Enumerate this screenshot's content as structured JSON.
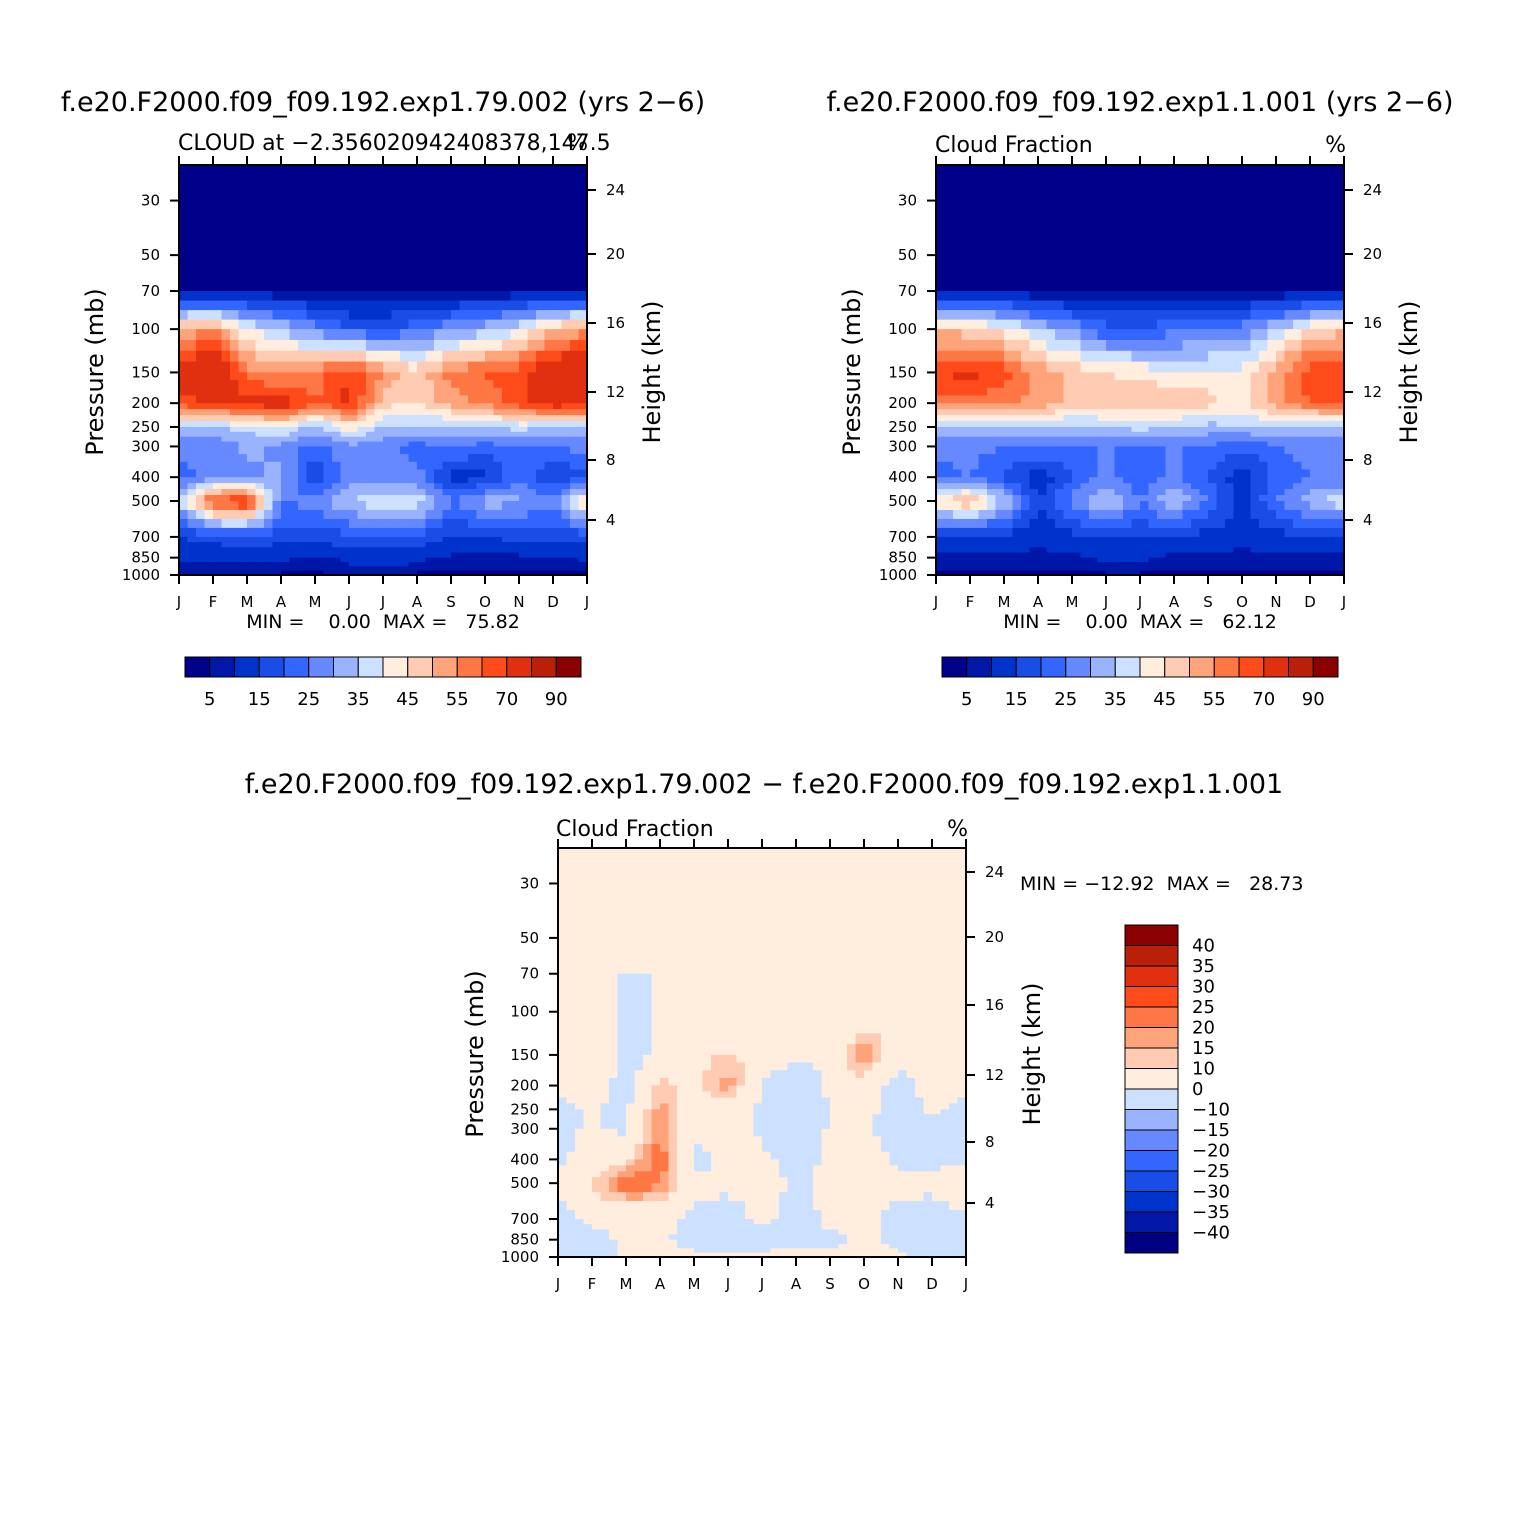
{
  "colors": {
    "cloud_scale": [
      "#00008b",
      "#0017a8",
      "#0033cc",
      "#1a4de6",
      "#3366ff",
      "#6689ff",
      "#99b3ff",
      "#cce0ff",
      "#ffeedd",
      "#ffccb3",
      "#ffa37a",
      "#ff7744",
      "#ff4a1a",
      "#e03010",
      "#b8200a",
      "#8b0000"
    ],
    "diff_scale": [
      "#000080",
      "#0017a8",
      "#0033cc",
      "#1a4de6",
      "#3366ff",
      "#6689ff",
      "#99b3ff",
      "#cce0ff",
      "#ffeedd",
      "#ffccb3",
      "#ffa37a",
      "#ff7744",
      "#ff4a1a",
      "#e03010",
      "#b8200a",
      "#8b0000"
    ]
  },
  "chart_data": [
    {
      "type": "heatmap",
      "title": "f.e20.F2000.f09_f09.192.exp1.79.002 (yrs 2−6)",
      "subtitle_left": "CLOUD at −2.356020942408378,147.5",
      "subtitle_right": "%",
      "ylabel": "Pressure (mb)",
      "ylabel_right": "Height (km)",
      "x_ticks": [
        "J",
        "F",
        "M",
        "A",
        "M",
        "J",
        "J",
        "A",
        "S",
        "O",
        "N",
        "D",
        "J"
      ],
      "y_ticks": [
        "30",
        "50",
        "70",
        "100",
        "150",
        "200",
        "250",
        "300",
        "400",
        "500",
        "700",
        "850",
        "1000"
      ],
      "y_right_ticks": [
        "24",
        "20",
        "16",
        "12",
        "8",
        "4"
      ],
      "stats": "MIN =    0.00  MAX =   75.82",
      "colorbar_labels": [
        "5",
        "15",
        "25",
        "35",
        "45",
        "55",
        "70",
        "90"
      ],
      "levels": [
        30,
        50,
        70,
        100,
        150,
        200,
        250,
        300,
        400,
        500,
        700,
        850,
        1000
      ],
      "values": [
        [
          0,
          0,
          0,
          0,
          0,
          0,
          0,
          0,
          0,
          0,
          0,
          0,
          0
        ],
        [
          0,
          0,
          0,
          0,
          0,
          0,
          0,
          0,
          0,
          0,
          0,
          0,
          0
        ],
        [
          2,
          2,
          2,
          1,
          1,
          1,
          1,
          1,
          1,
          1,
          1,
          2,
          2
        ],
        [
          45,
          50,
          35,
          30,
          22,
          15,
          15,
          18,
          24,
          28,
          34,
          45,
          48
        ],
        [
          65,
          72,
          52,
          48,
          52,
          60,
          50,
          42,
          52,
          55,
          58,
          68,
          70
        ],
        [
          58,
          60,
          62,
          65,
          55,
          62,
          42,
          40,
          48,
          52,
          58,
          65,
          62
        ],
        [
          30,
          30,
          32,
          35,
          28,
          38,
          30,
          30,
          28,
          30,
          32,
          30,
          30
        ],
        [
          22,
          20,
          26,
          24,
          18,
          24,
          22,
          18,
          20,
          18,
          20,
          20,
          22
        ],
        [
          18,
          22,
          24,
          26,
          10,
          22,
          20,
          22,
          8,
          8,
          20,
          10,
          14
        ],
        [
          30,
          58,
          62,
          20,
          22,
          30,
          36,
          34,
          20,
          28,
          26,
          22,
          42
        ],
        [
          10,
          12,
          14,
          12,
          12,
          14,
          12,
          14,
          10,
          10,
          12,
          12,
          12
        ],
        [
          6,
          6,
          6,
          6,
          4,
          6,
          8,
          6,
          4,
          4,
          4,
          4,
          6
        ],
        [
          2,
          2,
          2,
          2,
          2,
          3,
          3,
          2,
          2,
          2,
          2,
          2,
          2
        ]
      ]
    },
    {
      "type": "heatmap",
      "title": "f.e20.F2000.f09_f09.192.exp1.1.001 (yrs 2−6)",
      "subtitle_left": "Cloud Fraction",
      "subtitle_right": "%",
      "ylabel": "Pressure (mb)",
      "ylabel_right": "Height (km)",
      "x_ticks": [
        "J",
        "F",
        "M",
        "A",
        "M",
        "J",
        "J",
        "A",
        "S",
        "O",
        "N",
        "D",
        "J"
      ],
      "y_ticks": [
        "30",
        "50",
        "70",
        "100",
        "150",
        "200",
        "250",
        "300",
        "400",
        "500",
        "700",
        "850",
        "1000"
      ],
      "y_right_ticks": [
        "24",
        "20",
        "16",
        "12",
        "8",
        "4"
      ],
      "stats": "MIN =    0.00  MAX =   62.12",
      "colorbar_labels": [
        "5",
        "15",
        "25",
        "35",
        "45",
        "55",
        "70",
        "90"
      ],
      "levels": [
        30,
        50,
        70,
        100,
        150,
        200,
        250,
        300,
        400,
        500,
        700,
        850,
        1000
      ],
      "values": [
        [
          0,
          0,
          0,
          0,
          0,
          0,
          0,
          0,
          0,
          0,
          0,
          0,
          0
        ],
        [
          0,
          0,
          0,
          0,
          0,
          0,
          0,
          0,
          0,
          0,
          0,
          0,
          0
        ],
        [
          2,
          2,
          2,
          1,
          1,
          1,
          1,
          1,
          1,
          1,
          1,
          2,
          2
        ],
        [
          44,
          42,
          38,
          30,
          24,
          16,
          16,
          18,
          20,
          22,
          30,
          40,
          44
        ],
        [
          60,
          62,
          58,
          48,
          44,
          40,
          38,
          36,
          36,
          36,
          48,
          58,
          60
        ],
        [
          52,
          52,
          52,
          48,
          44,
          44,
          44,
          46,
          42,
          38,
          48,
          55,
          55
        ],
        [
          30,
          28,
          30,
          30,
          28,
          30,
          32,
          30,
          28,
          30,
          30,
          28,
          30
        ],
        [
          22,
          22,
          20,
          22,
          20,
          20,
          20,
          20,
          20,
          16,
          20,
          22,
          22
        ],
        [
          18,
          20,
          14,
          6,
          14,
          22,
          16,
          22,
          14,
          6,
          16,
          20,
          20
        ],
        [
          38,
          46,
          30,
          10,
          22,
          32,
          20,
          30,
          20,
          8,
          20,
          28,
          34
        ],
        [
          10,
          10,
          8,
          6,
          8,
          10,
          10,
          10,
          8,
          6,
          8,
          10,
          10
        ],
        [
          4,
          4,
          4,
          4,
          4,
          6,
          6,
          4,
          4,
          4,
          4,
          4,
          4
        ],
        [
          2,
          2,
          2,
          2,
          2,
          2,
          2,
          2,
          2,
          2,
          2,
          2,
          2
        ]
      ]
    },
    {
      "type": "heatmap",
      "title": "f.e20.F2000.f09_f09.192.exp1.79.002 − f.e20.F2000.f09_f09.192.exp1.1.001",
      "subtitle_left": "Cloud Fraction",
      "subtitle_right": "%",
      "ylabel": "Pressure (mb)",
      "ylabel_right": "Height (km)",
      "x_ticks": [
        "J",
        "F",
        "M",
        "A",
        "M",
        "J",
        "J",
        "A",
        "S",
        "O",
        "N",
        "D",
        "J"
      ],
      "y_ticks": [
        "30",
        "50",
        "70",
        "100",
        "150",
        "200",
        "250",
        "300",
        "400",
        "500",
        "700",
        "850",
        "1000"
      ],
      "y_right_ticks": [
        "24",
        "20",
        "16",
        "12",
        "8",
        "4"
      ],
      "stats": "MIN = −12.92  MAX =   28.73",
      "colorbar_labels": [
        "40",
        "35",
        "30",
        "25",
        "20",
        "15",
        "10",
        "0",
        "−10",
        "−15",
        "−20",
        "−25",
        "−30",
        "−35",
        "−40"
      ],
      "levels": [
        30,
        50,
        70,
        100,
        150,
        200,
        250,
        300,
        400,
        500,
        700,
        850,
        1000
      ],
      "values": [
        [
          0,
          0,
          0,
          0,
          0,
          0,
          0,
          0,
          0,
          0,
          0,
          0,
          0
        ],
        [
          0,
          0,
          0,
          0,
          0,
          0,
          0,
          0,
          0,
          0,
          0,
          0,
          0
        ],
        [
          0,
          0,
          0,
          0,
          0,
          0,
          0,
          0,
          0,
          0,
          0,
          0,
          0
        ],
        [
          1,
          5,
          -2,
          1,
          2,
          1,
          1,
          1,
          1,
          4,
          5,
          3,
          3
        ],
        [
          2,
          10,
          -4,
          1,
          6,
          12,
          6,
          1,
          1,
          22,
          2,
          10,
          3
        ],
        [
          2,
          3,
          -3,
          12,
          7,
          18,
          -1,
          -6,
          1,
          5,
          -3,
          3,
          2
        ],
        [
          -2,
          1,
          -2,
          18,
          5,
          5,
          -1,
          -8,
          1,
          2,
          -3,
          1,
          -2
        ],
        [
          -2,
          1,
          -2,
          21,
          1,
          5,
          -1,
          -7,
          1,
          1,
          -3,
          -2,
          -2
        ],
        [
          -2,
          4,
          8,
          24,
          -2,
          1,
          1,
          -2,
          1,
          3,
          -1,
          -1,
          -2
        ],
        [
          1,
          10,
          25,
          22,
          1,
          1,
          2,
          -1,
          1,
          1,
          1,
          1,
          5
        ],
        [
          -2,
          1,
          1,
          1,
          -1,
          -2,
          1,
          -2,
          1,
          1,
          -1,
          -2,
          -2
        ],
        [
          -2,
          -2,
          1,
          1,
          -2,
          -2,
          -2,
          -1,
          -1,
          1,
          -1,
          -2,
          -2
        ],
        [
          -2,
          -2,
          1,
          1,
          1,
          1,
          1,
          1,
          1,
          1,
          1,
          -2,
          -2
        ]
      ]
    }
  ]
}
